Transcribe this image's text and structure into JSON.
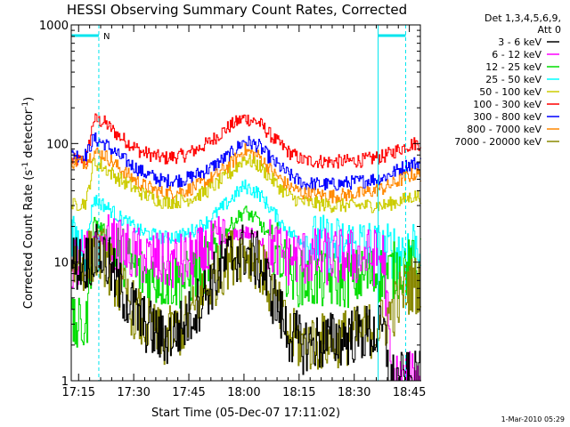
{
  "colors": {
    "background": "#ffffff",
    "axes": "#000000",
    "orbit_marker": "#00e5ee"
  },
  "chart_data": {
    "type": "line",
    "title": "HESSI Observing Summary Count Rates, Corrected",
    "xlabel": "Start Time (05-Dec-07 17:11:02)",
    "ylabel_main": "Corrected Count Rate (s",
    "ylabel_sup1": "-1",
    "ylabel_mid": " detector",
    "ylabel_sup2": "-1",
    "ylabel_end": ")",
    "yscale": "log",
    "ylim": [
      1,
      1000
    ],
    "xlim_minutes": [
      17.0,
      52.0
    ],
    "x_ticks": [
      {
        "minute": 19,
        "label": "17:15"
      },
      {
        "minute": 34,
        "label": "17:30"
      },
      {
        "minute": 49,
        "label": "17:45"
      },
      {
        "minute": 64,
        "label": "18:00"
      },
      {
        "minute": 79,
        "label": "18:15"
      },
      {
        "minute": 94,
        "label": "18:30"
      },
      {
        "minute": 109,
        "label": "18:45"
      }
    ],
    "y_ticks": [
      {
        "value": 1,
        "label": "1"
      },
      {
        "value": 10,
        "label": "10"
      },
      {
        "value": 100,
        "label": "100"
      },
      {
        "value": 1000,
        "label": "1000"
      }
    ],
    "legend": {
      "header_line1": "Det 1,3,4,5,6,9,",
      "header_line2": "Att 0",
      "entries": [
        {
          "label": "3 - 6 keV",
          "color": "#000000"
        },
        {
          "label": "6 - 12 keV",
          "color": "#ff00ff"
        },
        {
          "label": "12 - 25 keV",
          "color": "#00dd00"
        },
        {
          "label": "25 - 50 keV",
          "color": "#00ffff"
        },
        {
          "label": "50 - 100 keV",
          "color": "#cccc00"
        },
        {
          "label": "100 - 300 keV",
          "color": "#ff0000"
        },
        {
          "label": "300 - 800 keV",
          "color": "#0000ff"
        },
        {
          "label": "800 - 7000 keV",
          "color": "#ff8800"
        },
        {
          "label": "7000 - 20000 keV",
          "color": "#888800"
        }
      ]
    },
    "orbit_flags": [
      {
        "label": "N",
        "start_minute": 17.0,
        "end_minute": 24.5
      },
      {
        "label": "",
        "start_minute": 100.5,
        "end_minute": 108.0
      }
    ],
    "night_boundaries_minutes": [
      24.5,
      108.0
    ],
    "saa_boundary_minutes": [
      100.5
    ],
    "series": [
      {
        "color": "#ff0000",
        "level": [
          [
            17.0,
            72
          ],
          [
            21,
            72
          ],
          [
            23,
            160
          ],
          [
            26,
            150
          ],
          [
            30,
            115
          ],
          [
            36,
            85
          ],
          [
            42,
            75
          ],
          [
            48,
            80
          ],
          [
            54,
            100
          ],
          [
            60,
            140
          ],
          [
            64,
            165
          ],
          [
            68,
            150
          ],
          [
            72,
            110
          ],
          [
            76,
            85
          ],
          [
            80,
            72
          ],
          [
            88,
            70
          ],
          [
            96,
            72
          ],
          [
            102,
            78
          ],
          [
            108,
            95
          ],
          [
            110,
            100
          ]
        ]
      },
      {
        "color": "#0000ff",
        "level": [
          [
            17.0,
            80
          ],
          [
            21,
            80
          ],
          [
            23,
            110
          ],
          [
            26,
            100
          ],
          [
            30,
            78
          ],
          [
            36,
            58
          ],
          [
            42,
            48
          ],
          [
            48,
            50
          ],
          [
            54,
            60
          ],
          [
            60,
            80
          ],
          [
            64,
            105
          ],
          [
            68,
            95
          ],
          [
            72,
            70
          ],
          [
            76,
            55
          ],
          [
            80,
            46
          ],
          [
            88,
            45
          ],
          [
            96,
            48
          ],
          [
            102,
            52
          ],
          [
            108,
            65
          ],
          [
            110,
            68
          ]
        ]
      },
      {
        "color": "#ff8800",
        "level": [
          [
            17.0,
            70
          ],
          [
            21,
            70
          ],
          [
            23,
            85
          ],
          [
            26,
            80
          ],
          [
            30,
            62
          ],
          [
            36,
            45
          ],
          [
            42,
            38
          ],
          [
            48,
            40
          ],
          [
            54,
            48
          ],
          [
            60,
            66
          ],
          [
            64,
            88
          ],
          [
            68,
            78
          ],
          [
            72,
            56
          ],
          [
            76,
            44
          ],
          [
            80,
            38
          ],
          [
            88,
            36
          ],
          [
            96,
            38
          ],
          [
            102,
            42
          ],
          [
            108,
            52
          ],
          [
            110,
            55
          ]
        ]
      },
      {
        "color": "#cccc00",
        "level": [
          [
            17.0,
            30
          ],
          [
            21,
            32
          ],
          [
            23,
            70
          ],
          [
            26,
            62
          ],
          [
            30,
            50
          ],
          [
            36,
            38
          ],
          [
            42,
            32
          ],
          [
            48,
            33
          ],
          [
            54,
            40
          ],
          [
            60,
            55
          ],
          [
            64,
            75
          ],
          [
            68,
            65
          ],
          [
            72,
            48
          ],
          [
            76,
            36
          ],
          [
            80,
            32
          ],
          [
            88,
            30
          ],
          [
            96,
            30
          ],
          [
            102,
            30
          ],
          [
            108,
            34
          ],
          [
            110,
            36
          ]
        ]
      },
      {
        "color": "#00ffff",
        "level": [
          [
            17.0,
            14
          ],
          [
            21,
            14
          ],
          [
            23,
            34
          ],
          [
            26,
            30
          ],
          [
            30,
            24
          ],
          [
            36,
            18
          ],
          [
            42,
            16
          ],
          [
            48,
            17
          ],
          [
            54,
            22
          ],
          [
            60,
            33
          ],
          [
            64,
            44
          ],
          [
            68,
            38
          ],
          [
            72,
            26
          ],
          [
            76,
            18
          ],
          [
            80,
            15
          ],
          [
            88,
            14
          ],
          [
            96,
            14
          ],
          [
            102,
            12
          ],
          [
            108,
            13
          ],
          [
            110,
            14
          ]
        ]
      },
      {
        "color": "#00dd00",
        "level": [
          [
            17.0,
            2.8
          ],
          [
            21,
            2.8
          ],
          [
            23,
            22
          ],
          [
            26,
            18
          ],
          [
            30,
            12
          ],
          [
            36,
            8
          ],
          [
            42,
            7
          ],
          [
            48,
            7
          ],
          [
            54,
            10
          ],
          [
            60,
            20
          ],
          [
            64,
            27
          ],
          [
            68,
            22
          ],
          [
            72,
            14
          ],
          [
            76,
            8.5
          ],
          [
            80,
            7
          ],
          [
            88,
            7
          ],
          [
            96,
            7.5
          ],
          [
            102,
            8
          ],
          [
            108,
            9
          ],
          [
            110,
            9
          ]
        ]
      },
      {
        "color": "#ff00ff",
        "level": [
          [
            17.0,
            10
          ],
          [
            21,
            10
          ],
          [
            23,
            16
          ],
          [
            26,
            15
          ],
          [
            30,
            13
          ],
          [
            36,
            11
          ],
          [
            42,
            10
          ],
          [
            48,
            10
          ],
          [
            54,
            12
          ],
          [
            60,
            16
          ],
          [
            64,
            18
          ],
          [
            68,
            16
          ],
          [
            72,
            13
          ],
          [
            76,
            11
          ],
          [
            80,
            11
          ],
          [
            88,
            11
          ],
          [
            96,
            11
          ],
          [
            102,
            11
          ],
          [
            104,
            1.0
          ],
          [
            110,
            1.0
          ]
        ]
      },
      {
        "color": "#888800",
        "level": [
          [
            17.0,
            10
          ],
          [
            21,
            10
          ],
          [
            23,
            12
          ],
          [
            26,
            11
          ],
          [
            30,
            6
          ],
          [
            36,
            3.2
          ],
          [
            42,
            2.2
          ],
          [
            48,
            3
          ],
          [
            54,
            6
          ],
          [
            60,
            11
          ],
          [
            64,
            12.5
          ],
          [
            68,
            10
          ],
          [
            72,
            5
          ],
          [
            76,
            2.5
          ],
          [
            80,
            2
          ],
          [
            88,
            2.2
          ],
          [
            96,
            2.5
          ],
          [
            102,
            3
          ],
          [
            108,
            6
          ],
          [
            110,
            6.5
          ]
        ]
      },
      {
        "color": "#000000",
        "level": [
          [
            17.0,
            10
          ],
          [
            21,
            10
          ],
          [
            23,
            12
          ],
          [
            26,
            11
          ],
          [
            30,
            6
          ],
          [
            36,
            3.2
          ],
          [
            42,
            2.2
          ],
          [
            48,
            3
          ],
          [
            54,
            6
          ],
          [
            60,
            11
          ],
          [
            64,
            12.5
          ],
          [
            68,
            10
          ],
          [
            72,
            5
          ],
          [
            76,
            2.5
          ],
          [
            80,
            2
          ],
          [
            88,
            2.2
          ],
          [
            96,
            2.5
          ],
          [
            102,
            2.5
          ],
          [
            104,
            1.0
          ],
          [
            110,
            1.0
          ]
        ]
      }
    ]
  },
  "footer": {
    "timestamp": "1-Mar-2010 05:29"
  }
}
